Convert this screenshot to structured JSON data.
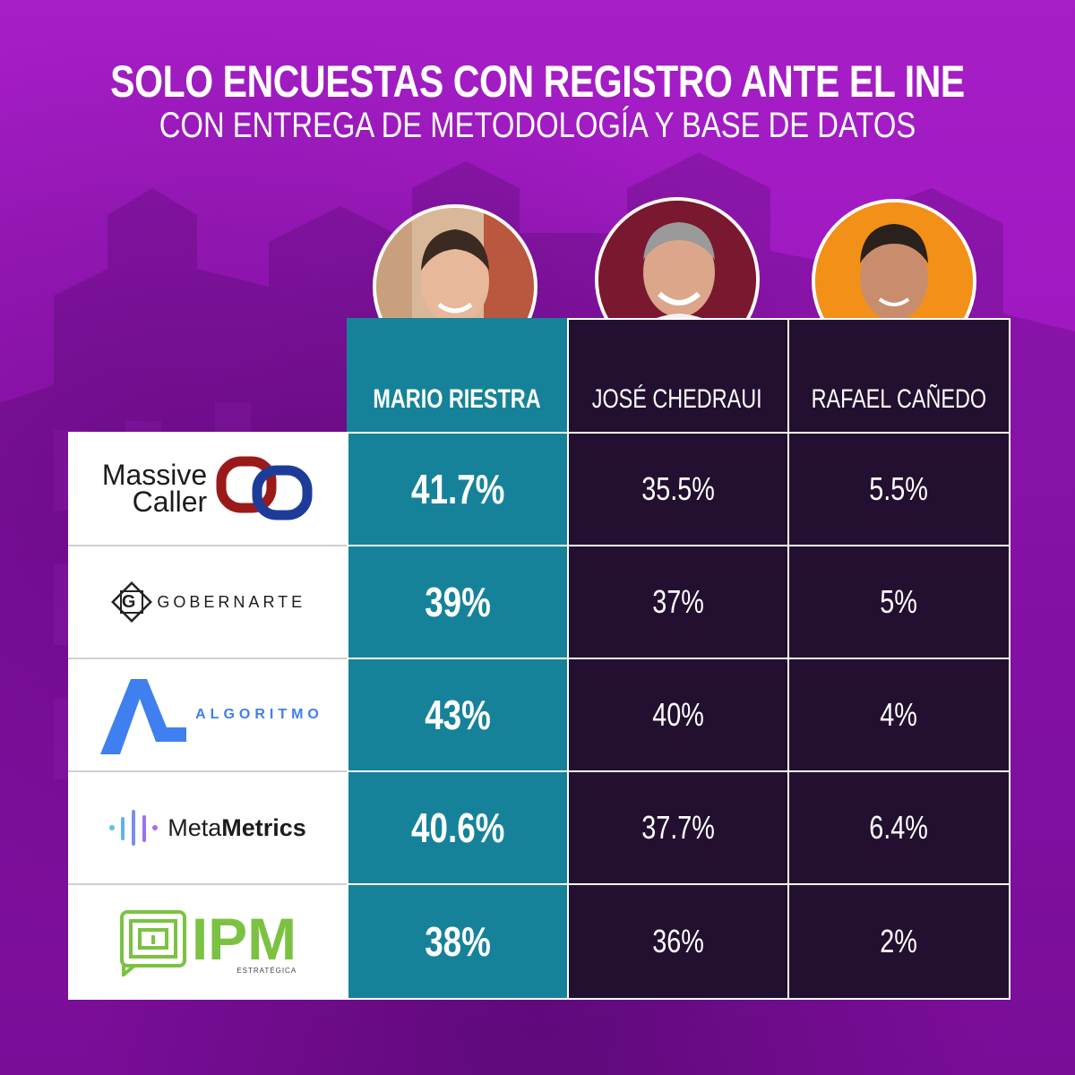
{
  "title": "SOLO ENCUESTAS CON REGISTRO ANTE EL INE",
  "subtitle": "CON ENTREGA DE METODOLOGÍA Y BASE DE DATOS",
  "colors": {
    "background": "#a419c4",
    "highlight": "#16829a",
    "dark": "#231030",
    "avatar2_bg": "#7a1830",
    "avatar3_bg": "#f39018"
  },
  "candidates": [
    "MARIO RIESTRA",
    "JOSÉ CHEDRAUI",
    "RAFAEL CAÑEDO"
  ],
  "pollsters": [
    {
      "name": "Massive Caller",
      "logo": {
        "line1": "Massive",
        "line2": "Caller"
      },
      "values": [
        "41.7%",
        "35.5%",
        "5.5%"
      ]
    },
    {
      "name": "GobernArte",
      "logo": {
        "letter": "G",
        "text": "GOBERNARTE"
      },
      "values": [
        "39%",
        "37%",
        "5%"
      ]
    },
    {
      "name": "Algoritmo",
      "logo": {
        "text": "ALGORITMO"
      },
      "values": [
        "43%",
        "40%",
        "4%"
      ]
    },
    {
      "name": "MetaMetrics",
      "logo": {
        "part1": "Meta",
        "part2": "Metrics"
      },
      "values": [
        "40.6%",
        "37.7%",
        "6.4%"
      ]
    },
    {
      "name": "IPM",
      "logo": {
        "text": "IPM",
        "sub": "ESTRATÉGICA"
      },
      "values": [
        "38%",
        "36%",
        "2%"
      ]
    }
  ],
  "chart_data": {
    "type": "table",
    "title": "SOLO ENCUESTAS CON REGISTRO ANTE EL INE",
    "subtitle": "CON ENTREGA DE METODOLOGÍA Y BASE DE DATOS",
    "columns": [
      "MARIO RIESTRA",
      "JOSÉ CHEDRAUI",
      "RAFAEL CAÑEDO"
    ],
    "rows": [
      "Massive Caller",
      "GobernArte",
      "Algoritmo",
      "MetaMetrics",
      "IPM"
    ],
    "unit": "%",
    "series": [
      {
        "name": "MARIO RIESTRA",
        "values": [
          41.7,
          39,
          43,
          40.6,
          38
        ]
      },
      {
        "name": "JOSÉ CHEDRAUI",
        "values": [
          35.5,
          37,
          40,
          37.7,
          36
        ]
      },
      {
        "name": "RAFAEL CAÑEDO",
        "values": [
          5.5,
          5,
          4,
          6.4,
          2
        ]
      }
    ]
  }
}
